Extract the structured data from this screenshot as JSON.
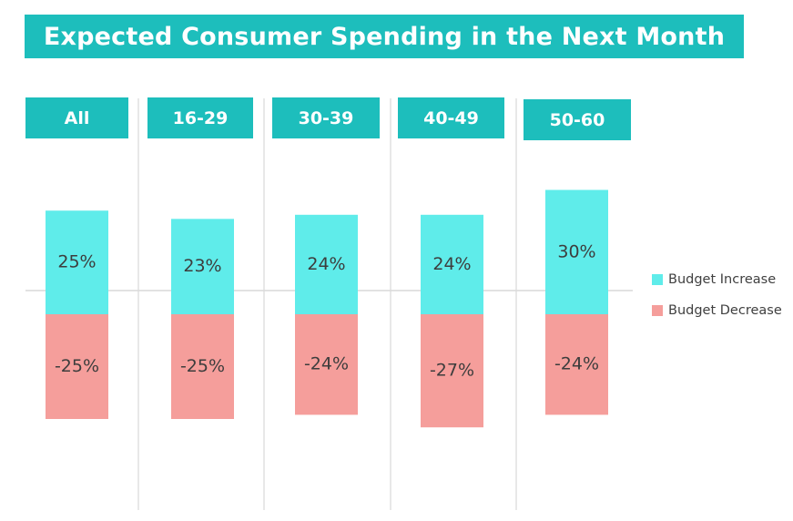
{
  "chart_data": {
    "type": "bar",
    "title": "Expected Consumer Spending in the Next Month",
    "categories": [
      "All",
      "16-29",
      "30-39",
      "40-49",
      "50-60"
    ],
    "series": [
      {
        "name": "Budget Increase",
        "values": [
          25,
          23,
          24,
          24,
          30
        ],
        "labels": [
          "25%",
          "23%",
          "24%",
          "24%",
          "30%"
        ],
        "color": "#5fecea"
      },
      {
        "name": "Budget Decrease",
        "values": [
          -25,
          -25,
          -24,
          -27,
          -24
        ],
        "labels": [
          "-25%",
          "-25%",
          "-24%",
          "-27%",
          "-24%"
        ],
        "color": "#f59e9b"
      }
    ],
    "legend_position": "right",
    "grid": false,
    "header_color": "#1dbebc"
  }
}
